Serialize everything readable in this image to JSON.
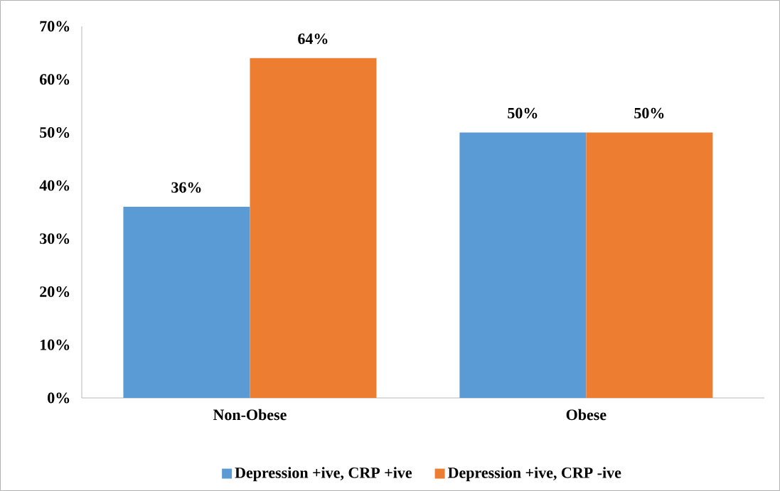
{
  "chart_data": {
    "type": "bar",
    "categories": [
      "Non-Obese",
      "Obese"
    ],
    "series": [
      {
        "name": "Depression +ive, CRP +ive",
        "color": "#5b9bd5",
        "values": [
          36,
          50
        ],
        "value_labels": [
          "36%",
          "50%"
        ]
      },
      {
        "name": "Depression +ive, CRP -ive",
        "color": "#ed7d31",
        "values": [
          64,
          50
        ],
        "value_labels": [
          "64%",
          "50%"
        ]
      }
    ],
    "ylim": [
      0,
      70
    ],
    "yticks": [
      {
        "value": 0,
        "label": "0%"
      },
      {
        "value": 10,
        "label": "10%"
      },
      {
        "value": 20,
        "label": "20%"
      },
      {
        "value": 30,
        "label": "30%"
      },
      {
        "value": 40,
        "label": "40%"
      },
      {
        "value": 50,
        "label": "50%"
      },
      {
        "value": 60,
        "label": "60%"
      },
      {
        "value": 70,
        "label": "70%"
      }
    ],
    "grid": false,
    "legend": "bottom"
  }
}
